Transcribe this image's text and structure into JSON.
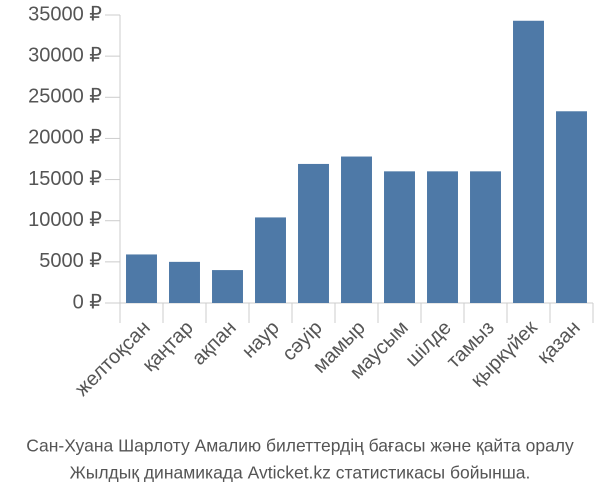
{
  "chart_data": {
    "type": "bar",
    "title": [
      "Сан-Хуана Шарлоту Амалию билеттердің бағасы және қайта оралу",
      "Жылдық динамикада Avticket.kz статистикасы бойынша."
    ],
    "categories": [
      "желтоқсан",
      "қаңтар",
      "ақпан",
      "наур",
      "сәуір",
      "мамыр",
      "маусым",
      "шілде",
      "тамыз",
      "қыркүйек",
      "қазан"
    ],
    "values": [
      5900,
      5000,
      4000,
      10400,
      16900,
      17800,
      16000,
      16000,
      16000,
      34300,
      23300
    ],
    "color": "#4e79a7",
    "ylim": [
      0,
      35000
    ],
    "yticks": [
      {
        "value": 0,
        "label": "0 ₽"
      },
      {
        "value": 5000,
        "label": "5000 ₽"
      },
      {
        "value": 10000,
        "label": "10000 ₽"
      },
      {
        "value": 15000,
        "label": "15000 ₽"
      },
      {
        "value": 20000,
        "label": "20000 ₽"
      },
      {
        "value": 25000,
        "label": "25000 ₽"
      },
      {
        "value": 30000,
        "label": "30000 ₽"
      },
      {
        "value": 35000,
        "label": "35000 ₽"
      }
    ],
    "grid": false
  }
}
